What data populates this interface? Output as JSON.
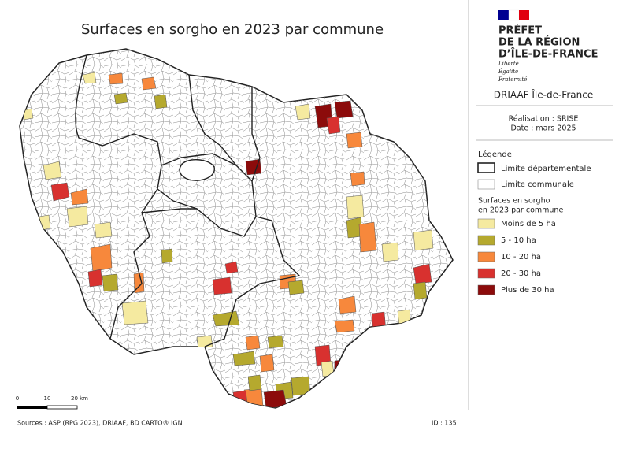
{
  "title": "Surfaces en sorgho en 2023 par commune",
  "header": {
    "prefet": [
      "PRÉFET",
      "DE LA RÉGION",
      "D’ÎLE-DE-FRANCE"
    ],
    "motto": [
      "Liberté",
      "Égalité",
      "Fraternité"
    ],
    "org": "DRIAAF Île-de-France",
    "realisation": "Réalisation : SRISE",
    "date": "Date : mars 2025"
  },
  "legend": {
    "title": "Légende",
    "boundaries": [
      "Limite départementale",
      "Limite communale"
    ],
    "class_title": [
      "Surfaces en sorgho",
      "en 2023 par commune"
    ],
    "classes": [
      {
        "label": "Moins de 5 ha",
        "color": "#f5eaa0"
      },
      {
        "label": "5 - 10 ha",
        "color": "#b5a92e"
      },
      {
        "label": "10 - 20 ha",
        "color": "#f7883c"
      },
      {
        "label": "20 - 30 ha",
        "color": "#d8312f"
      },
      {
        "label": "Plus de 30 ha",
        "color": "#8c0b0b"
      }
    ]
  },
  "scale": {
    "ticks": [
      "0",
      "10",
      "20 km"
    ]
  },
  "sources": "Sources : ASP (RPG 2023), DRIAAF, BD CARTO® IGN",
  "id": "ID : 135"
}
